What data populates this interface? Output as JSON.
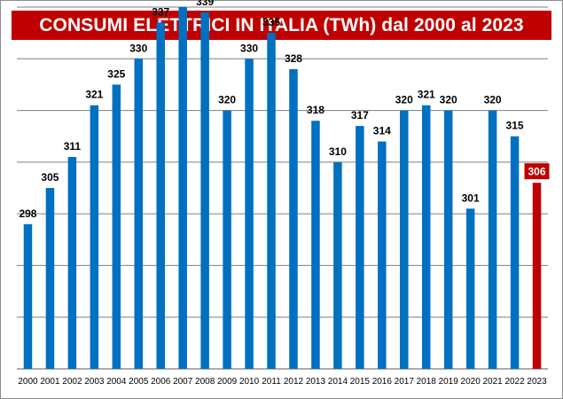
{
  "chart_data": {
    "type": "bar",
    "title": "CONSUMI ELETTRICI IN ITALIA (TWh) dal 2000 al 2023",
    "categories": [
      "2000",
      "2001",
      "2002",
      "2003",
      "2004",
      "2005",
      "2006",
      "2007",
      "2008",
      "2009",
      "2010",
      "2011",
      "2012",
      "2013",
      "2014",
      "2015",
      "2016",
      "2017",
      "2018",
      "2019",
      "2020",
      "2021",
      "2022",
      "2023"
    ],
    "values": [
      298,
      305,
      311,
      321,
      325,
      330,
      337,
      340,
      339,
      320,
      330,
      335,
      328,
      318,
      310,
      317,
      314,
      320,
      321,
      320,
      301,
      320,
      315,
      306
    ],
    "ylim": [
      270,
      340
    ],
    "grid": true,
    "highlight_index": 23
  },
  "colors": {
    "title_bg": "#c00000",
    "bar": "#0070c0",
    "highlight_bar": "#c00000",
    "highlight_label_bg": "#c00000",
    "grid": "#7f7f7f",
    "axis": "#595959"
  }
}
